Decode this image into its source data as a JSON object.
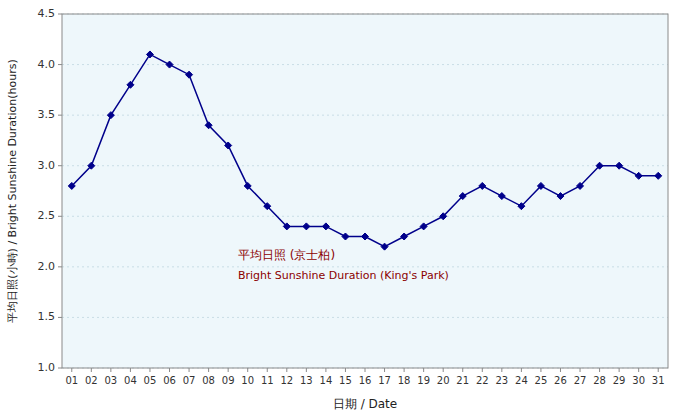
{
  "chart_data": {
    "type": "line",
    "x_label": "日期 / Date",
    "y_label": "平均日照(小時) / Bright Sunshine Duration(hours)",
    "x": [
      1,
      2,
      3,
      4,
      5,
      6,
      7,
      8,
      9,
      10,
      11,
      12,
      13,
      14,
      15,
      16,
      17,
      18,
      19,
      20,
      21,
      22,
      23,
      24,
      25,
      26,
      27,
      28,
      29,
      30,
      31
    ],
    "values": [
      2.8,
      3.0,
      3.5,
      3.8,
      4.1,
      4.0,
      3.9,
      3.4,
      3.2,
      2.8,
      2.6,
      2.4,
      2.4,
      2.4,
      2.3,
      2.3,
      2.2,
      2.3,
      2.4,
      2.5,
      2.7,
      2.8,
      2.7,
      2.6,
      2.8,
      2.7,
      2.8,
      3.0,
      3.0,
      2.9,
      2.9
    ],
    "color": "#00008B",
    "marker": "diamond",
    "xlim": [
      0.5,
      31.5
    ],
    "xticks": [
      {
        "value": 1,
        "label": "01"
      },
      {
        "value": 2,
        "label": "02"
      },
      {
        "value": 3,
        "label": "03"
      },
      {
        "value": 4,
        "label": "04"
      },
      {
        "value": 5,
        "label": "05"
      },
      {
        "value": 6,
        "label": "06"
      },
      {
        "value": 7,
        "label": "07"
      },
      {
        "value": 8,
        "label": "08"
      },
      {
        "value": 9,
        "label": "09"
      },
      10,
      11,
      12,
      13,
      14,
      15,
      16,
      17,
      18,
      19,
      20,
      21,
      22,
      23,
      24,
      25,
      26,
      27,
      28,
      29,
      30,
      31
    ],
    "ylim": [
      1.0,
      4.5
    ],
    "yticks": [
      {
        "value": 1.0,
        "label": "1.0"
      },
      1.5,
      {
        "value": 2.0,
        "label": "2.0"
      },
      2.5,
      {
        "value": 3.0,
        "label": "3.0"
      },
      3.5,
      {
        "value": 4.0,
        "label": "4.0"
      },
      4.5
    ],
    "grid": true,
    "annotations": [
      {
        "text": "平均日照 (京士柏)",
        "x": 9.5,
        "y": 2.08
      },
      {
        "text": "Bright Sunshine Duration (King's Park)",
        "x": 9.5,
        "y": 1.88
      }
    ]
  }
}
